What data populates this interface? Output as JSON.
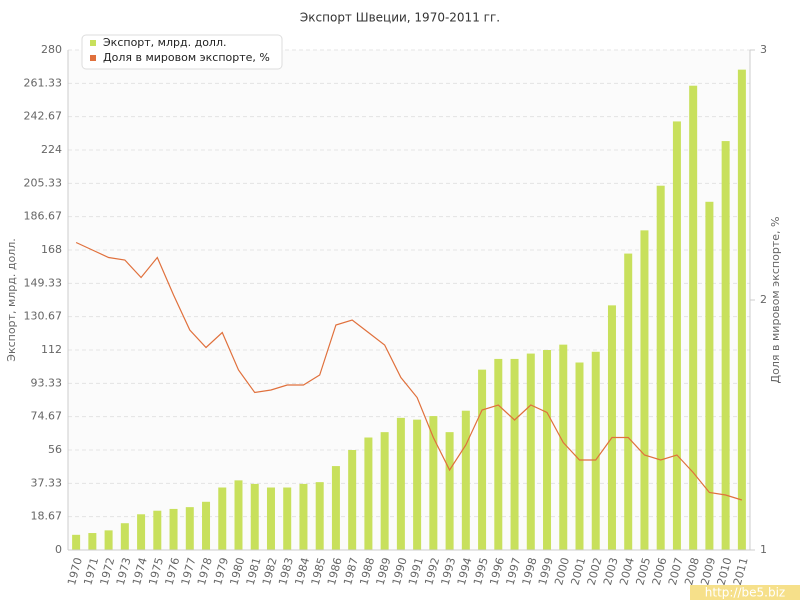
{
  "chart_data": {
    "type": "bar_line",
    "title": "Экспорт Швеции, 1970-2011 гг.",
    "y_label": "Экспорт, млрд. долл.",
    "y2_label": "Доля в мировом экспорте, %",
    "watermark": "http://be5.biz",
    "categories": [
      "1970",
      "1971",
      "1972",
      "1973",
      "1974",
      "1975",
      "1976",
      "1977",
      "1978",
      "1979",
      "1980",
      "1981",
      "1982",
      "1983",
      "1984",
      "1985",
      "1986",
      "1987",
      "1988",
      "1989",
      "1990",
      "1991",
      "1992",
      "1993",
      "1994",
      "1995",
      "1996",
      "1997",
      "1998",
      "1999",
      "2000",
      "2001",
      "2002",
      "2003",
      "2004",
      "2005",
      "2006",
      "2007",
      "2008",
      "2009",
      "2010",
      "2011"
    ],
    "series": [
      {
        "name": "Экспорт, млрд. долл.",
        "type": "bar",
        "color": "#c8e05c",
        "values": [
          8.5,
          9.5,
          11,
          15,
          20,
          22,
          23,
          24,
          27,
          35,
          39,
          37,
          35,
          35,
          37,
          38,
          47,
          56,
          63,
          66,
          74,
          73,
          75,
          66,
          78,
          101,
          107,
          107,
          110,
          112,
          115,
          105,
          111,
          137,
          166,
          179,
          204,
          240,
          260,
          195,
          229,
          269
        ]
      },
      {
        "name": "Доля в мировом экспорте, %",
        "type": "line",
        "axis": "y2",
        "color": "#e0703c",
        "values": [
          2.23,
          2.2,
          2.17,
          2.16,
          2.09,
          2.17,
          2.02,
          1.88,
          1.81,
          1.87,
          1.72,
          1.63,
          1.64,
          1.66,
          1.66,
          1.7,
          1.9,
          1.92,
          1.87,
          1.82,
          1.69,
          1.61,
          1.45,
          1.32,
          1.42,
          1.56,
          1.58,
          1.52,
          1.58,
          1.55,
          1.43,
          1.36,
          1.36,
          1.45,
          1.45,
          1.38,
          1.36,
          1.38,
          1.31,
          1.23,
          1.22,
          1.2
        ]
      }
    ],
    "ylim": [
      0,
      280
    ],
    "yticks": [
      0,
      18.67,
      37.33,
      56,
      74.67,
      93.33,
      112,
      130.67,
      149.33,
      168,
      186.67,
      205.33,
      224,
      242.67,
      261.33,
      280
    ],
    "y2lim": [
      1,
      3
    ],
    "y2ticks": [
      1,
      2,
      3
    ],
    "grid": true,
    "legend": "top-left"
  }
}
